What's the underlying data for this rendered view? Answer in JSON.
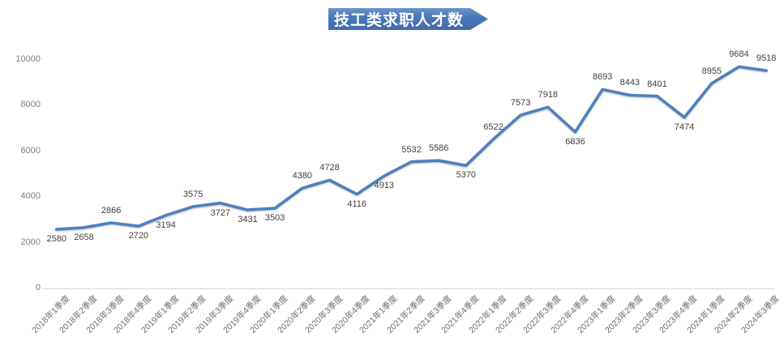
{
  "chart_data": {
    "type": "line",
    "title": "技工类求职人才数",
    "categories": [
      "2018年1季度",
      "2018年2季度",
      "2018年3季度",
      "2018年4季度",
      "2019年1季度",
      "2019年2季度",
      "2019年3季度",
      "2019年4季度",
      "2020年1季度",
      "2020年2季度",
      "2020年3季度",
      "2020年4季度",
      "2021年1季度",
      "2021年2季度",
      "2021年3季度",
      "2021年4季度",
      "2022年1季度",
      "2022年2季度",
      "2022年3季度",
      "2022年4季度",
      "2023年1季度",
      "2023年2季度",
      "2023年3季度",
      "2023年4季度",
      "2024年1季度",
      "2024年2季度",
      "2024年3季度"
    ],
    "values": [
      2580,
      2658,
      2866,
      2720,
      3194,
      3575,
      3727,
      3431,
      3503,
      4380,
      4728,
      4116,
      4913,
      5532,
      5586,
      5370,
      6522,
      7573,
      7918,
      6836,
      8693,
      8443,
      8401,
      7474,
      8955,
      9684,
      9518
    ],
    "data_label_side": [
      "below",
      "below",
      "above",
      "below",
      "below",
      "above",
      "below",
      "below",
      "below",
      "above",
      "above",
      "below",
      "below",
      "above",
      "above",
      "below",
      "above",
      "above",
      "above",
      "below",
      "above",
      "above",
      "above",
      "below",
      "above",
      "above",
      "above"
    ],
    "xlabel": "",
    "ylabel": "",
    "ylim": [
      0,
      10000
    ],
    "y_ticks": [
      0,
      2000,
      4000,
      6000,
      8000,
      10000
    ],
    "grid": "off",
    "legend": "none",
    "colors": {
      "line": "#4E81BD",
      "banner": "#4A79B9",
      "axis_text": "#7F7F7F",
      "data_label": "#404040",
      "axis_line": "#D6D6D6"
    }
  }
}
